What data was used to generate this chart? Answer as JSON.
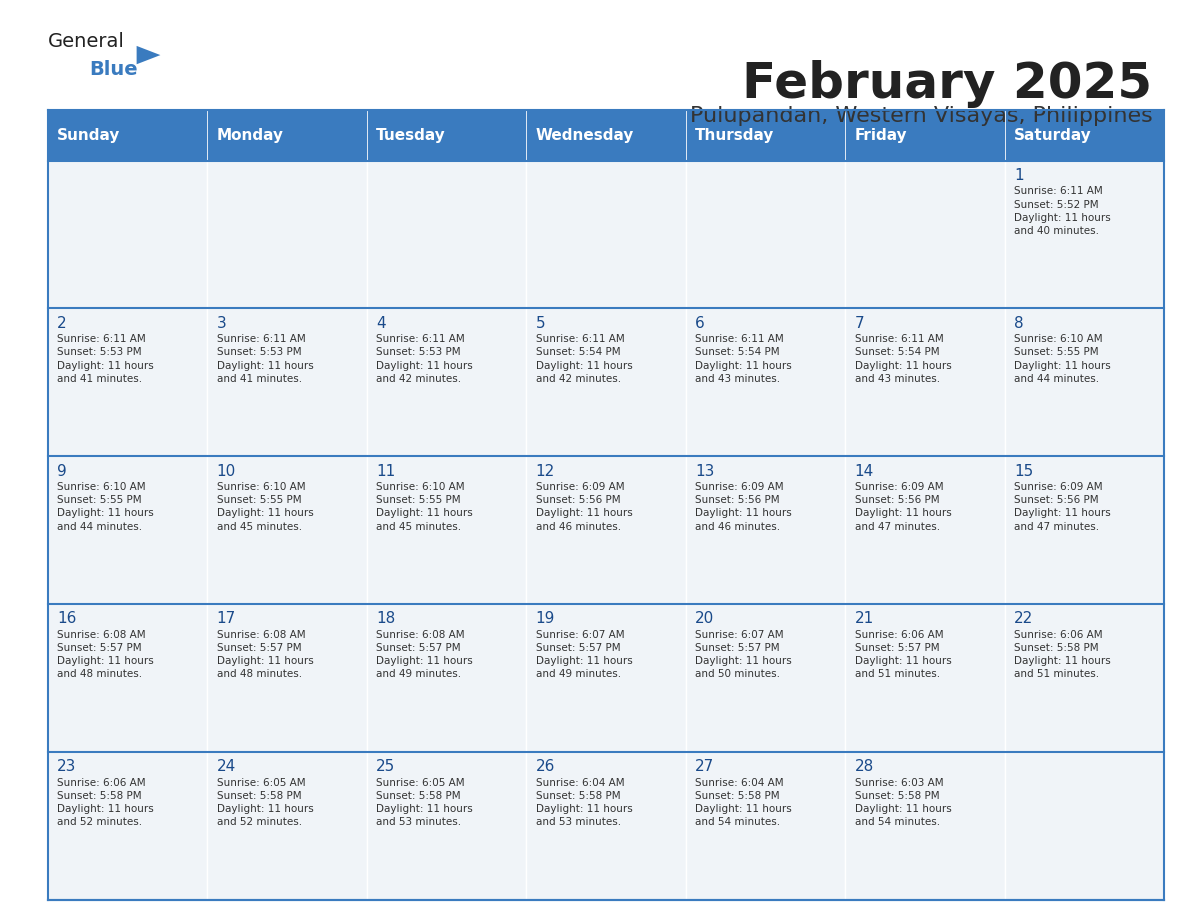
{
  "title": "February 2025",
  "subtitle": "Pulupandan, Western Visayas, Philippines",
  "days_of_week": [
    "Sunday",
    "Monday",
    "Tuesday",
    "Wednesday",
    "Thursday",
    "Friday",
    "Saturday"
  ],
  "header_bg": "#3a7bbf",
  "header_text": "#ffffff",
  "cell_bg_light": "#f0f4f8",
  "cell_bg_white": "#ffffff",
  "border_color": "#3a7bbf",
  "title_color": "#222222",
  "subtitle_color": "#333333",
  "day_number_color": "#1a4a8a",
  "cell_text_color": "#333333",
  "logo_general_color": "#222222",
  "logo_blue_color": "#3a7bbf",
  "weeks": [
    [
      {
        "day": null,
        "info": null
      },
      {
        "day": null,
        "info": null
      },
      {
        "day": null,
        "info": null
      },
      {
        "day": null,
        "info": null
      },
      {
        "day": null,
        "info": null
      },
      {
        "day": null,
        "info": null
      },
      {
        "day": 1,
        "info": "Sunrise: 6:11 AM\nSunset: 5:52 PM\nDaylight: 11 hours\nand 40 minutes."
      }
    ],
    [
      {
        "day": 2,
        "info": "Sunrise: 6:11 AM\nSunset: 5:53 PM\nDaylight: 11 hours\nand 41 minutes."
      },
      {
        "day": 3,
        "info": "Sunrise: 6:11 AM\nSunset: 5:53 PM\nDaylight: 11 hours\nand 41 minutes."
      },
      {
        "day": 4,
        "info": "Sunrise: 6:11 AM\nSunset: 5:53 PM\nDaylight: 11 hours\nand 42 minutes."
      },
      {
        "day": 5,
        "info": "Sunrise: 6:11 AM\nSunset: 5:54 PM\nDaylight: 11 hours\nand 42 minutes."
      },
      {
        "day": 6,
        "info": "Sunrise: 6:11 AM\nSunset: 5:54 PM\nDaylight: 11 hours\nand 43 minutes."
      },
      {
        "day": 7,
        "info": "Sunrise: 6:11 AM\nSunset: 5:54 PM\nDaylight: 11 hours\nand 43 minutes."
      },
      {
        "day": 8,
        "info": "Sunrise: 6:10 AM\nSunset: 5:55 PM\nDaylight: 11 hours\nand 44 minutes."
      }
    ],
    [
      {
        "day": 9,
        "info": "Sunrise: 6:10 AM\nSunset: 5:55 PM\nDaylight: 11 hours\nand 44 minutes."
      },
      {
        "day": 10,
        "info": "Sunrise: 6:10 AM\nSunset: 5:55 PM\nDaylight: 11 hours\nand 45 minutes."
      },
      {
        "day": 11,
        "info": "Sunrise: 6:10 AM\nSunset: 5:55 PM\nDaylight: 11 hours\nand 45 minutes."
      },
      {
        "day": 12,
        "info": "Sunrise: 6:09 AM\nSunset: 5:56 PM\nDaylight: 11 hours\nand 46 minutes."
      },
      {
        "day": 13,
        "info": "Sunrise: 6:09 AM\nSunset: 5:56 PM\nDaylight: 11 hours\nand 46 minutes."
      },
      {
        "day": 14,
        "info": "Sunrise: 6:09 AM\nSunset: 5:56 PM\nDaylight: 11 hours\nand 47 minutes."
      },
      {
        "day": 15,
        "info": "Sunrise: 6:09 AM\nSunset: 5:56 PM\nDaylight: 11 hours\nand 47 minutes."
      }
    ],
    [
      {
        "day": 16,
        "info": "Sunrise: 6:08 AM\nSunset: 5:57 PM\nDaylight: 11 hours\nand 48 minutes."
      },
      {
        "day": 17,
        "info": "Sunrise: 6:08 AM\nSunset: 5:57 PM\nDaylight: 11 hours\nand 48 minutes."
      },
      {
        "day": 18,
        "info": "Sunrise: 6:08 AM\nSunset: 5:57 PM\nDaylight: 11 hours\nand 49 minutes."
      },
      {
        "day": 19,
        "info": "Sunrise: 6:07 AM\nSunset: 5:57 PM\nDaylight: 11 hours\nand 49 minutes."
      },
      {
        "day": 20,
        "info": "Sunrise: 6:07 AM\nSunset: 5:57 PM\nDaylight: 11 hours\nand 50 minutes."
      },
      {
        "day": 21,
        "info": "Sunrise: 6:06 AM\nSunset: 5:57 PM\nDaylight: 11 hours\nand 51 minutes."
      },
      {
        "day": 22,
        "info": "Sunrise: 6:06 AM\nSunset: 5:58 PM\nDaylight: 11 hours\nand 51 minutes."
      }
    ],
    [
      {
        "day": 23,
        "info": "Sunrise: 6:06 AM\nSunset: 5:58 PM\nDaylight: 11 hours\nand 52 minutes."
      },
      {
        "day": 24,
        "info": "Sunrise: 6:05 AM\nSunset: 5:58 PM\nDaylight: 11 hours\nand 52 minutes."
      },
      {
        "day": 25,
        "info": "Sunrise: 6:05 AM\nSunset: 5:58 PM\nDaylight: 11 hours\nand 53 minutes."
      },
      {
        "day": 26,
        "info": "Sunrise: 6:04 AM\nSunset: 5:58 PM\nDaylight: 11 hours\nand 53 minutes."
      },
      {
        "day": 27,
        "info": "Sunrise: 6:04 AM\nSunset: 5:58 PM\nDaylight: 11 hours\nand 54 minutes."
      },
      {
        "day": 28,
        "info": "Sunrise: 6:03 AM\nSunset: 5:58 PM\nDaylight: 11 hours\nand 54 minutes."
      },
      {
        "day": null,
        "info": null
      }
    ]
  ]
}
